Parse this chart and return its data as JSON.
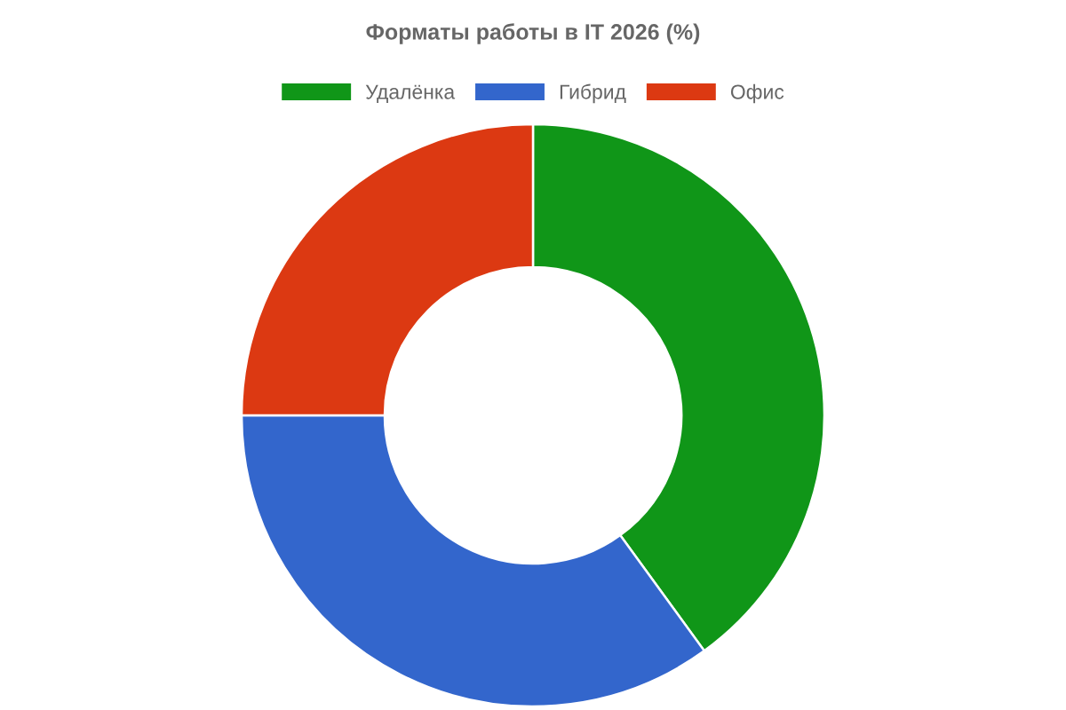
{
  "chart_data": {
    "type": "donut",
    "title": "Форматы работы в IT 2026 (%)",
    "categories": [
      "Удалёнка",
      "Гибрид",
      "Офис"
    ],
    "values": [
      40,
      35,
      25
    ],
    "colors": [
      "#109618",
      "#3366cc",
      "#dc3912"
    ],
    "legend": "top"
  }
}
